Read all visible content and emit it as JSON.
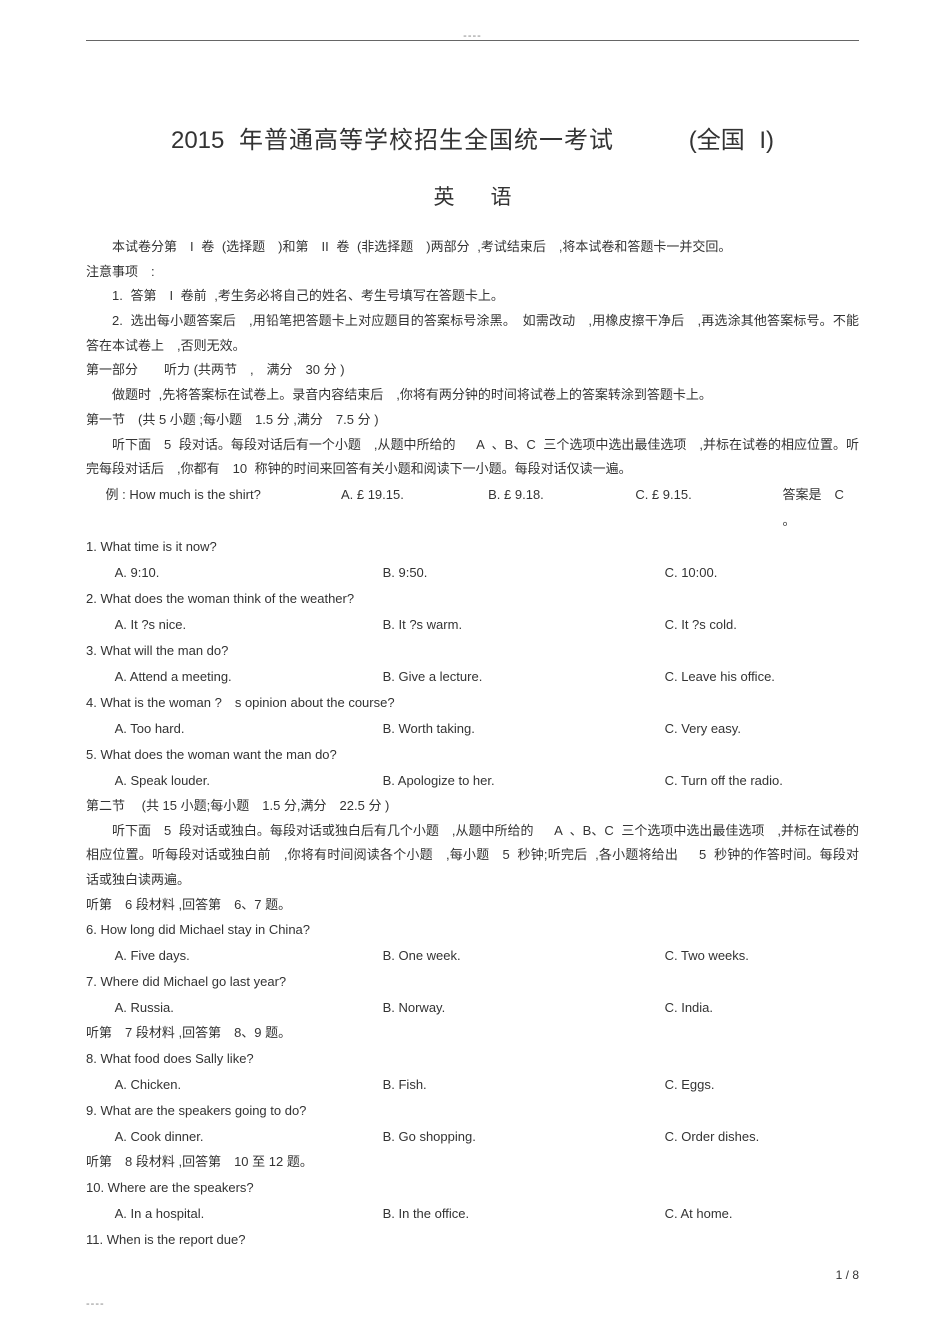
{
  "header_dots": "----",
  "footer_dots": "----",
  "page_number": "1 / 8",
  "title": {
    "year": "2015",
    "main_cn": "年普通高等学校招生全国统一考试",
    "paren": "(全国  I)",
    "subject": "英语"
  },
  "intro": {
    "p1": "本试卷分第　I 卷 (选择题　)和第　II 卷 (非选择题　)两部分 ,考试结束后　,将本试卷和答题卡一并交回。",
    "notice_label": "注意事项　:",
    "n1": "1.  答第　I 卷前 ,考生务必将自己的姓名、考生号填写在答题卡上。",
    "n2": "2.  选出每小题答案后　,用铅笔把答题卡上对应题目的答案标号涂黑。　如需改动　,用橡皮擦干净后　,再选涂其他答案标号。不能答在本试卷上　,否则无效。"
  },
  "part1": {
    "label": "第一部分　　听力 (共两节　,　满分　30 分 )",
    "instr": "做题时 ,先将答案标在试卷上。录音内容结束后　,你将有两分钟的时间将试卷上的答案转涂到答题卡上。",
    "sec1_label": "第一节　(共 5 小题 ;每小题　1.5 分 ,满分　7.5 分 )",
    "sec1_instr": "听下面　5 段对话。每段对话后有一个小题　,从题中所给的　 A 、B、C 三个选项中选出最佳选项　,并标在试卷的相应位置。听完每段对话后　,你都有　10 称钟的时间来回答有关小题和阅读下一小题。每段对话仅读一遍。"
  },
  "example": {
    "q": "例 : How much is the shirt?",
    "a": "A.   £ 19.15.",
    "b": "B.   £ 9.18.",
    "c": "C.   £ 9.15.",
    "ans": "答案是　C 。"
  },
  "questions_1_5": [
    {
      "q": "1. What time is it now?",
      "a": "A. 9:10.",
      "b": "B. 9:50.",
      "c": "C. 10:00."
    },
    {
      "q": "2. What does the woman think of the weather?",
      "a": "A. It ?s nice.",
      "b": "B. It ?s warm.",
      "c": "C. It ?s cold."
    },
    {
      "q": "3. What will the man do?",
      "a": "A. Attend a meeting.",
      "b": "B. Give a lecture.",
      "c": "C. Leave his office."
    },
    {
      "q": "4. What is the woman ?　s opinion about the course?",
      "a": "A. Too hard.",
      "b": "B. Worth taking.",
      "c": "C. Very easy."
    },
    {
      "q": "5. What does the woman want the man do?",
      "a": "A. Speak louder.",
      "b": "B. Apologize to her.",
      "c": "C. Turn off the radio."
    }
  ],
  "sec2": {
    "label": "第二节　 (共 15 小题;每小题　1.5 分,满分　22.5 分 )",
    "instr": "听下面　5 段对话或独白。每段对话或独白后有几个小题　,从题中所给的　 A 、B、C 三个选项中选出最佳选项　,并标在试卷的相应位置。听每段对话或独白前　,你将有时间阅读各个小题　,每小题　5 秒钟;听完后 ,各小题将给出　 5 秒钟的作答时间。每段对话或独白读两遍。"
  },
  "material6": {
    "label": "听第　6 段材料 ,回答第　6、7 题。",
    "q6": {
      "q": "6. How long did Michael stay in China?",
      "a": "A. Five days.",
      "b": "B. One week.",
      "c": "C. Two weeks."
    },
    "q7": {
      "q": "7. Where did Michael go last year?",
      "a": "A. Russia.",
      "b": "B. Norway.",
      "c": "C. India."
    }
  },
  "material7": {
    "label": "听第　7 段材料 ,回答第　8、9 题。",
    "q8": {
      "q": "8. What food does Sally like?",
      "a": "A. Chicken.",
      "b": "B. Fish.",
      "c": "C. Eggs."
    },
    "q9": {
      "q": "9. What are the speakers going to do?",
      "a": "A. Cook dinner.",
      "b": "B. Go shopping.",
      "c": "C. Order dishes."
    }
  },
  "material8": {
    "label": "听第　8 段材料 ,回答第　10 至 12 题。",
    "q10": {
      "q": "10. Where are the speakers?",
      "a": "A. In a hospital.",
      "b": "B. In the office.",
      "c": "C. At home."
    },
    "q11": {
      "q": "11. When is the report due?"
    }
  }
}
